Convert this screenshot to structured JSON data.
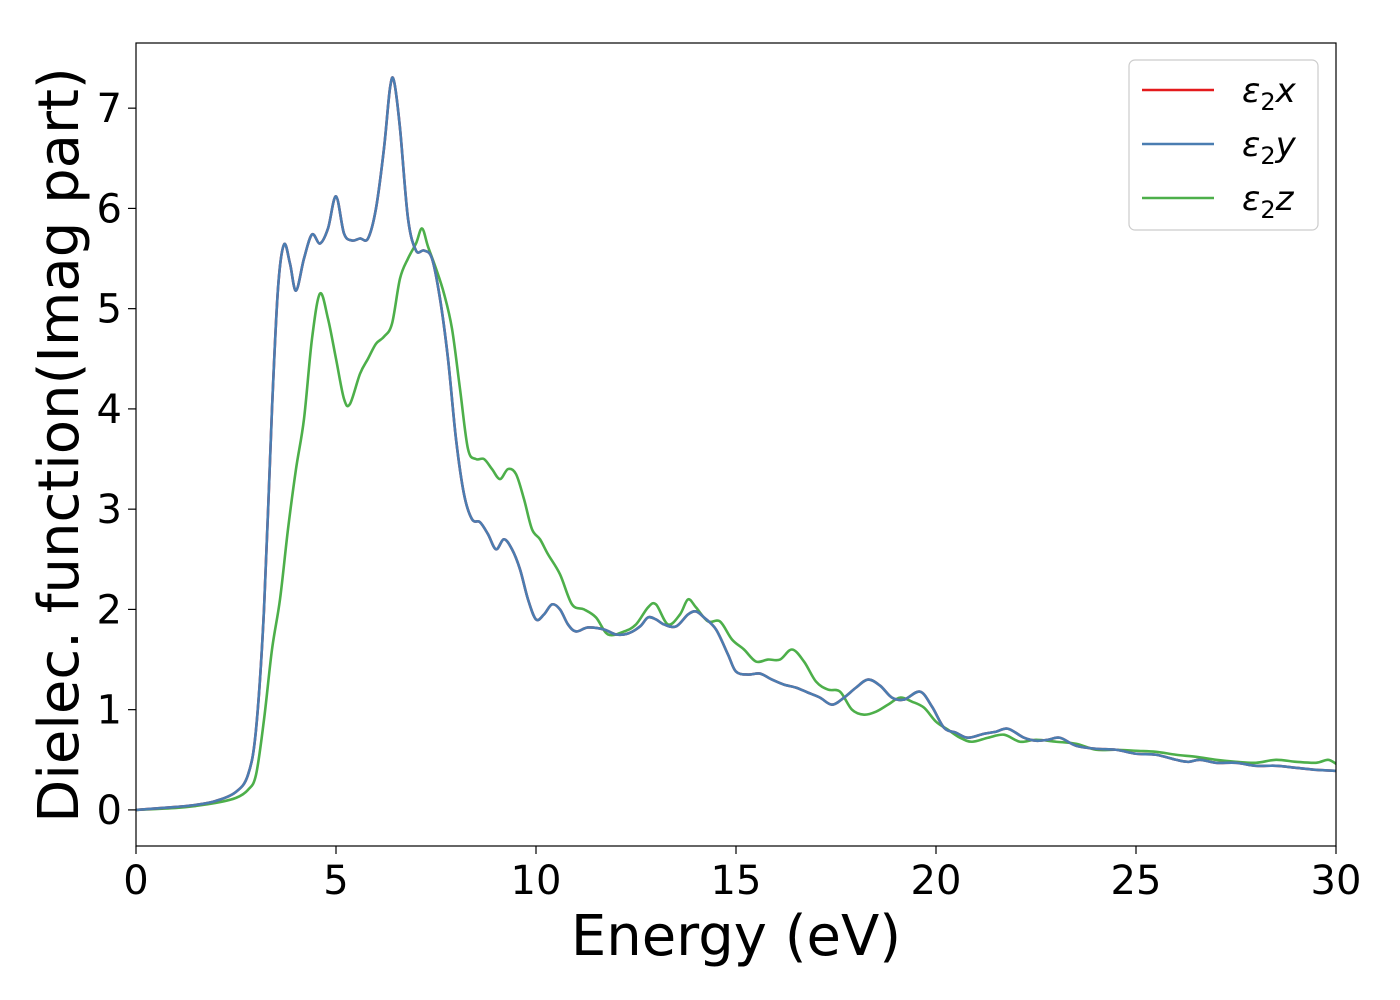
{
  "chart_data": {
    "type": "line",
    "xlabel": "Energy (eV)",
    "ylabel": "Dielec. function(Imag part)",
    "xlim": [
      0,
      30
    ],
    "ylim": [
      -0.36,
      7.65
    ],
    "x_ticks": [
      0,
      5,
      10,
      15,
      20,
      25,
      30
    ],
    "x_tick_labels": [
      "0",
      "5",
      "10",
      "15",
      "20",
      "25",
      "30"
    ],
    "y_ticks": [
      0,
      1,
      2,
      3,
      4,
      5,
      6,
      7
    ],
    "y_tick_labels": [
      "0",
      "1",
      "2",
      "3",
      "4",
      "5",
      "6",
      "7"
    ],
    "grid": false,
    "legend_position": "top-right",
    "series": [
      {
        "name": "ε₂x",
        "legend_base": "ε",
        "legend_sub": "2",
        "legend_suffix": "x",
        "color": "#e41a1c",
        "points": [
          [
            0,
            0
          ],
          [
            1,
            0.03
          ],
          [
            1.5,
            0.05
          ],
          [
            2,
            0.09
          ],
          [
            2.5,
            0.18
          ],
          [
            2.8,
            0.35
          ],
          [
            3.0,
            0.8
          ],
          [
            3.2,
            2.0
          ],
          [
            3.4,
            4.0
          ],
          [
            3.55,
            5.2
          ],
          [
            3.7,
            5.64
          ],
          [
            3.85,
            5.45
          ],
          [
            4.0,
            5.18
          ],
          [
            4.2,
            5.5
          ],
          [
            4.4,
            5.74
          ],
          [
            4.6,
            5.65
          ],
          [
            4.8,
            5.8
          ],
          [
            5.0,
            6.12
          ],
          [
            5.2,
            5.75
          ],
          [
            5.4,
            5.68
          ],
          [
            5.6,
            5.7
          ],
          [
            5.8,
            5.7
          ],
          [
            6.0,
            6.0
          ],
          [
            6.2,
            6.6
          ],
          [
            6.35,
            7.2
          ],
          [
            6.45,
            7.27
          ],
          [
            6.6,
            6.8
          ],
          [
            6.8,
            5.9
          ],
          [
            7.0,
            5.58
          ],
          [
            7.2,
            5.58
          ],
          [
            7.4,
            5.5
          ],
          [
            7.6,
            5.1
          ],
          [
            7.8,
            4.5
          ],
          [
            8.0,
            3.7
          ],
          [
            8.2,
            3.15
          ],
          [
            8.4,
            2.9
          ],
          [
            8.6,
            2.87
          ],
          [
            8.8,
            2.75
          ],
          [
            9.0,
            2.6
          ],
          [
            9.2,
            2.7
          ],
          [
            9.4,
            2.6
          ],
          [
            9.6,
            2.4
          ],
          [
            9.8,
            2.1
          ],
          [
            10.0,
            1.9
          ],
          [
            10.2,
            1.95
          ],
          [
            10.4,
            2.05
          ],
          [
            10.6,
            2.0
          ],
          [
            10.8,
            1.85
          ],
          [
            11.0,
            1.78
          ],
          [
            11.3,
            1.82
          ],
          [
            11.7,
            1.8
          ],
          [
            12.0,
            1.75
          ],
          [
            12.3,
            1.76
          ],
          [
            12.6,
            1.83
          ],
          [
            12.8,
            1.92
          ],
          [
            13.0,
            1.9
          ],
          [
            13.2,
            1.85
          ],
          [
            13.5,
            1.83
          ],
          [
            13.8,
            1.95
          ],
          [
            14.0,
            1.98
          ],
          [
            14.2,
            1.92
          ],
          [
            14.5,
            1.8
          ],
          [
            14.8,
            1.55
          ],
          [
            15.0,
            1.38
          ],
          [
            15.3,
            1.35
          ],
          [
            15.6,
            1.36
          ],
          [
            15.9,
            1.3
          ],
          [
            16.2,
            1.25
          ],
          [
            16.5,
            1.22
          ],
          [
            16.8,
            1.17
          ],
          [
            17.1,
            1.12
          ],
          [
            17.4,
            1.05
          ],
          [
            17.7,
            1.12
          ],
          [
            18.0,
            1.22
          ],
          [
            18.3,
            1.3
          ],
          [
            18.6,
            1.24
          ],
          [
            18.9,
            1.12
          ],
          [
            19.2,
            1.1
          ],
          [
            19.6,
            1.18
          ],
          [
            19.9,
            1.03
          ],
          [
            20.2,
            0.82
          ],
          [
            20.5,
            0.77
          ],
          [
            20.8,
            0.72
          ],
          [
            21.2,
            0.76
          ],
          [
            21.5,
            0.78
          ],
          [
            21.8,
            0.81
          ],
          [
            22.2,
            0.72
          ],
          [
            22.5,
            0.69
          ],
          [
            22.8,
            0.7
          ],
          [
            23.1,
            0.72
          ],
          [
            23.5,
            0.64
          ],
          [
            24.0,
            0.61
          ],
          [
            24.5,
            0.6
          ],
          [
            25.0,
            0.56
          ],
          [
            25.5,
            0.55
          ],
          [
            26.0,
            0.5
          ],
          [
            26.3,
            0.48
          ],
          [
            26.6,
            0.5
          ],
          [
            27.0,
            0.47
          ],
          [
            27.5,
            0.47
          ],
          [
            28.0,
            0.44
          ],
          [
            28.5,
            0.44
          ],
          [
            29.0,
            0.42
          ],
          [
            29.5,
            0.4
          ],
          [
            30.0,
            0.39
          ]
        ]
      },
      {
        "name": "ε₂y",
        "legend_base": "ε",
        "legend_sub": "2",
        "legend_suffix": "y",
        "color": "#4a7db1",
        "points": [
          [
            0,
            0
          ],
          [
            1,
            0.03
          ],
          [
            1.5,
            0.05
          ],
          [
            2,
            0.09
          ],
          [
            2.5,
            0.18
          ],
          [
            2.8,
            0.35
          ],
          [
            3.0,
            0.8
          ],
          [
            3.2,
            2.0
          ],
          [
            3.4,
            4.0
          ],
          [
            3.55,
            5.2
          ],
          [
            3.7,
            5.64
          ],
          [
            3.85,
            5.45
          ],
          [
            4.0,
            5.18
          ],
          [
            4.2,
            5.5
          ],
          [
            4.4,
            5.74
          ],
          [
            4.6,
            5.65
          ],
          [
            4.8,
            5.8
          ],
          [
            5.0,
            6.12
          ],
          [
            5.2,
            5.75
          ],
          [
            5.4,
            5.68
          ],
          [
            5.6,
            5.7
          ],
          [
            5.8,
            5.7
          ],
          [
            6.0,
            6.0
          ],
          [
            6.2,
            6.6
          ],
          [
            6.35,
            7.2
          ],
          [
            6.45,
            7.27
          ],
          [
            6.6,
            6.8
          ],
          [
            6.8,
            5.9
          ],
          [
            7.0,
            5.58
          ],
          [
            7.2,
            5.58
          ],
          [
            7.4,
            5.5
          ],
          [
            7.6,
            5.1
          ],
          [
            7.8,
            4.5
          ],
          [
            8.0,
            3.7
          ],
          [
            8.2,
            3.15
          ],
          [
            8.4,
            2.9
          ],
          [
            8.6,
            2.87
          ],
          [
            8.8,
            2.75
          ],
          [
            9.0,
            2.6
          ],
          [
            9.2,
            2.7
          ],
          [
            9.4,
            2.6
          ],
          [
            9.6,
            2.4
          ],
          [
            9.8,
            2.1
          ],
          [
            10.0,
            1.9
          ],
          [
            10.2,
            1.95
          ],
          [
            10.4,
            2.05
          ],
          [
            10.6,
            2.0
          ],
          [
            10.8,
            1.85
          ],
          [
            11.0,
            1.78
          ],
          [
            11.3,
            1.82
          ],
          [
            11.7,
            1.8
          ],
          [
            12.0,
            1.75
          ],
          [
            12.3,
            1.76
          ],
          [
            12.6,
            1.83
          ],
          [
            12.8,
            1.92
          ],
          [
            13.0,
            1.9
          ],
          [
            13.2,
            1.85
          ],
          [
            13.5,
            1.83
          ],
          [
            13.8,
            1.95
          ],
          [
            14.0,
            1.98
          ],
          [
            14.2,
            1.92
          ],
          [
            14.5,
            1.8
          ],
          [
            14.8,
            1.55
          ],
          [
            15.0,
            1.38
          ],
          [
            15.3,
            1.35
          ],
          [
            15.6,
            1.36
          ],
          [
            15.9,
            1.3
          ],
          [
            16.2,
            1.25
          ],
          [
            16.5,
            1.22
          ],
          [
            16.8,
            1.17
          ],
          [
            17.1,
            1.12
          ],
          [
            17.4,
            1.05
          ],
          [
            17.7,
            1.12
          ],
          [
            18.0,
            1.22
          ],
          [
            18.3,
            1.3
          ],
          [
            18.6,
            1.24
          ],
          [
            18.9,
            1.12
          ],
          [
            19.2,
            1.1
          ],
          [
            19.6,
            1.18
          ],
          [
            19.9,
            1.03
          ],
          [
            20.2,
            0.82
          ],
          [
            20.5,
            0.77
          ],
          [
            20.8,
            0.72
          ],
          [
            21.2,
            0.76
          ],
          [
            21.5,
            0.78
          ],
          [
            21.8,
            0.81
          ],
          [
            22.2,
            0.72
          ],
          [
            22.5,
            0.69
          ],
          [
            22.8,
            0.7
          ],
          [
            23.1,
            0.72
          ],
          [
            23.5,
            0.64
          ],
          [
            24.0,
            0.61
          ],
          [
            24.5,
            0.6
          ],
          [
            25.0,
            0.56
          ],
          [
            25.5,
            0.55
          ],
          [
            26.0,
            0.5
          ],
          [
            26.3,
            0.48
          ],
          [
            26.6,
            0.5
          ],
          [
            27.0,
            0.47
          ],
          [
            27.5,
            0.47
          ],
          [
            28.0,
            0.44
          ],
          [
            28.5,
            0.44
          ],
          [
            29.0,
            0.42
          ],
          [
            29.5,
            0.4
          ],
          [
            30.0,
            0.39
          ]
        ]
      },
      {
        "name": "ε₂z",
        "legend_base": "ε",
        "legend_sub": "2",
        "legend_suffix": "z",
        "color": "#4daf4a",
        "points": [
          [
            0,
            0
          ],
          [
            1,
            0.02
          ],
          [
            1.5,
            0.04
          ],
          [
            2,
            0.07
          ],
          [
            2.5,
            0.12
          ],
          [
            2.8,
            0.2
          ],
          [
            3.0,
            0.35
          ],
          [
            3.2,
            0.9
          ],
          [
            3.4,
            1.6
          ],
          [
            3.6,
            2.1
          ],
          [
            3.8,
            2.8
          ],
          [
            4.0,
            3.4
          ],
          [
            4.2,
            3.9
          ],
          [
            4.4,
            4.7
          ],
          [
            4.6,
            5.15
          ],
          [
            4.8,
            4.9
          ],
          [
            5.0,
            4.5
          ],
          [
            5.2,
            4.1
          ],
          [
            5.35,
            4.05
          ],
          [
            5.6,
            4.35
          ],
          [
            5.8,
            4.5
          ],
          [
            6.0,
            4.65
          ],
          [
            6.2,
            4.72
          ],
          [
            6.4,
            4.85
          ],
          [
            6.6,
            5.3
          ],
          [
            6.8,
            5.5
          ],
          [
            7.0,
            5.65
          ],
          [
            7.15,
            5.8
          ],
          [
            7.3,
            5.62
          ],
          [
            7.5,
            5.4
          ],
          [
            7.7,
            5.15
          ],
          [
            7.9,
            4.8
          ],
          [
            8.1,
            4.2
          ],
          [
            8.3,
            3.6
          ],
          [
            8.5,
            3.5
          ],
          [
            8.7,
            3.5
          ],
          [
            8.9,
            3.4
          ],
          [
            9.1,
            3.3
          ],
          [
            9.3,
            3.4
          ],
          [
            9.5,
            3.35
          ],
          [
            9.7,
            3.1
          ],
          [
            9.9,
            2.8
          ],
          [
            10.1,
            2.7
          ],
          [
            10.3,
            2.55
          ],
          [
            10.6,
            2.35
          ],
          [
            10.9,
            2.05
          ],
          [
            11.2,
            2.0
          ],
          [
            11.5,
            1.92
          ],
          [
            11.8,
            1.75
          ],
          [
            12.2,
            1.78
          ],
          [
            12.5,
            1.85
          ],
          [
            12.8,
            2.02
          ],
          [
            13.0,
            2.05
          ],
          [
            13.3,
            1.85
          ],
          [
            13.6,
            1.95
          ],
          [
            13.8,
            2.1
          ],
          [
            14.0,
            2.02
          ],
          [
            14.3,
            1.88
          ],
          [
            14.6,
            1.88
          ],
          [
            14.9,
            1.7
          ],
          [
            15.2,
            1.6
          ],
          [
            15.5,
            1.48
          ],
          [
            15.8,
            1.5
          ],
          [
            16.1,
            1.5
          ],
          [
            16.4,
            1.6
          ],
          [
            16.7,
            1.48
          ],
          [
            17.0,
            1.28
          ],
          [
            17.3,
            1.2
          ],
          [
            17.6,
            1.18
          ],
          [
            17.9,
            1.0
          ],
          [
            18.2,
            0.95
          ],
          [
            18.5,
            0.98
          ],
          [
            18.8,
            1.05
          ],
          [
            19.1,
            1.12
          ],
          [
            19.4,
            1.08
          ],
          [
            19.7,
            1.02
          ],
          [
            20.0,
            0.88
          ],
          [
            20.3,
            0.8
          ],
          [
            20.6,
            0.72
          ],
          [
            20.9,
            0.68
          ],
          [
            21.3,
            0.72
          ],
          [
            21.7,
            0.75
          ],
          [
            22.1,
            0.68
          ],
          [
            22.5,
            0.7
          ],
          [
            23.0,
            0.68
          ],
          [
            23.5,
            0.66
          ],
          [
            24.0,
            0.6
          ],
          [
            24.5,
            0.6
          ],
          [
            25.0,
            0.59
          ],
          [
            25.5,
            0.58
          ],
          [
            26.0,
            0.55
          ],
          [
            26.5,
            0.53
          ],
          [
            27.0,
            0.5
          ],
          [
            27.5,
            0.48
          ],
          [
            28.0,
            0.47
          ],
          [
            28.5,
            0.5
          ],
          [
            29.0,
            0.48
          ],
          [
            29.5,
            0.47
          ],
          [
            29.8,
            0.5
          ],
          [
            30.0,
            0.46
          ]
        ]
      }
    ]
  }
}
